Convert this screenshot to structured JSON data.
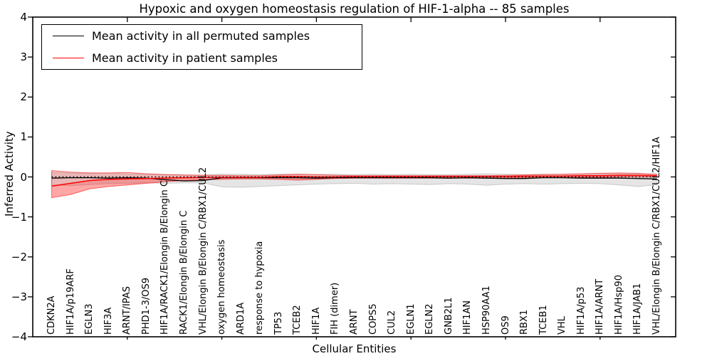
{
  "chart_data": {
    "type": "line",
    "title": "Hypoxic and oxygen homeostasis regulation of HIF-1-alpha -- 85 samples",
    "xlabel": "Cellular Entities",
    "ylabel": "Inferred Activity",
    "xlim": [
      0,
      34
    ],
    "ylim": [
      -4,
      4
    ],
    "yticks": [
      4,
      3,
      2,
      1,
      0,
      -1,
      -2,
      -3,
      -4
    ],
    "xticks_major": [
      5,
      10,
      15,
      20,
      25,
      30
    ],
    "grid": false,
    "legend_position": "upper-left",
    "zero_line": {
      "y": 0,
      "style": "dotted",
      "color": "#000000"
    },
    "frame_color": "#000000",
    "categories": [
      "CDKN2A",
      "HIF1A/p19ARF",
      "EGLN3",
      "HIF3A",
      "ARNT/IPAS",
      "PHD1-3/OS9",
      "HIF1A/RACK1/Elongin B/Elongin C",
      "RACK1/Elongin B/Elongin C",
      "VHL/Elongin B/Elongin C/RBX1/CUL2",
      "oxygen homeostasis",
      "ARD1A",
      "response to hypoxia",
      "TP53",
      "TCEB2",
      "HIF1A",
      "FIH (dimer)",
      "ARNT",
      "COPS5",
      "CUL2",
      "EGLN1",
      "EGLN2",
      "GNB2L1",
      "HIF1AN",
      "HSP90AA1",
      "OS9",
      "RBX1",
      "TCEB1",
      "VHL",
      "HIF1A/p53",
      "HIF1A/ARNT",
      "HIF1A/Hsp90",
      "HIF1A/JAB1",
      "VHL/Elongin B/Elongin C/RBX1/CUL2/HIF1A"
    ],
    "series": [
      {
        "name": "Mean activity in all permuted samples",
        "color": "#000000",
        "line_width": 1.3,
        "band_fill": "rgba(0,0,0,0.10)",
        "band_edge": "rgba(0,0,0,0.16)",
        "values": [
          -0.03,
          -0.02,
          -0.02,
          -0.03,
          -0.02,
          -0.03,
          -0.07,
          -0.1,
          -0.09,
          -0.02,
          -0.02,
          -0.02,
          -0.02,
          -0.02,
          -0.03,
          -0.02,
          -0.02,
          -0.02,
          -0.02,
          -0.02,
          -0.02,
          -0.03,
          -0.02,
          -0.03,
          -0.04,
          -0.04,
          -0.02,
          -0.02,
          -0.03,
          -0.03,
          -0.03,
          -0.04,
          -0.05
        ],
        "band_upper": [
          0.12,
          0.1,
          0.09,
          0.1,
          0.08,
          0.07,
          0.06,
          0.05,
          0.05,
          0.07,
          0.07,
          0.06,
          0.07,
          0.07,
          0.06,
          0.07,
          0.06,
          0.07,
          0.06,
          0.07,
          0.06,
          0.06,
          0.07,
          0.08,
          0.07,
          0.06,
          0.07,
          0.06,
          0.07,
          0.08,
          0.08,
          0.08,
          0.08
        ],
        "band_lower": [
          -0.2,
          -0.22,
          -0.19,
          -0.17,
          -0.16,
          -0.15,
          -0.16,
          -0.15,
          -0.15,
          -0.25,
          -0.26,
          -0.24,
          -0.22,
          -0.2,
          -0.18,
          -0.17,
          -0.16,
          -0.18,
          -0.17,
          -0.18,
          -0.19,
          -0.17,
          -0.18,
          -0.21,
          -0.18,
          -0.17,
          -0.18,
          -0.17,
          -0.16,
          -0.17,
          -0.2,
          -0.24,
          -0.2
        ]
      },
      {
        "name": "Mean activity in patient samples",
        "color": "#ff0000",
        "line_width": 1.5,
        "band_fill": "rgba(255,0,0,0.20)",
        "band_edge": "rgba(255,0,0,0.55)",
        "band_fill_lower": "rgba(255,0,0,0.18)",
        "values": [
          -0.23,
          -0.16,
          -0.09,
          -0.06,
          -0.05,
          -0.04,
          -0.03,
          -0.02,
          -0.01,
          -0.01,
          -0.01,
          -0.01,
          0.01,
          0.01,
          0.0,
          0.0,
          0.01,
          0.01,
          0.01,
          0.01,
          0.01,
          0.01,
          0.01,
          0.01,
          0.01,
          0.02,
          0.02,
          0.02,
          0.03,
          0.03,
          0.04,
          0.04,
          0.03
        ],
        "band_upper": [
          0.16,
          0.12,
          0.1,
          0.1,
          0.11,
          0.08,
          0.06,
          0.05,
          0.04,
          0.04,
          0.03,
          0.03,
          0.05,
          0.07,
          0.06,
          0.04,
          0.03,
          0.03,
          0.03,
          0.03,
          0.03,
          0.03,
          0.03,
          0.03,
          0.04,
          0.05,
          0.06,
          0.07,
          0.08,
          0.09,
          0.1,
          0.09,
          0.06
        ],
        "band_lower": [
          -0.52,
          -0.44,
          -0.3,
          -0.24,
          -0.2,
          -0.16,
          -0.12,
          -0.09,
          -0.07,
          -0.06,
          -0.05,
          -0.05,
          -0.06,
          -0.08,
          -0.06,
          -0.04,
          -0.03,
          -0.03,
          -0.03,
          -0.03,
          -0.03,
          -0.03,
          -0.03,
          -0.03,
          -0.03,
          -0.02,
          -0.02,
          -0.02,
          -0.01,
          -0.01,
          0.0,
          0.0,
          0.0
        ]
      }
    ]
  }
}
